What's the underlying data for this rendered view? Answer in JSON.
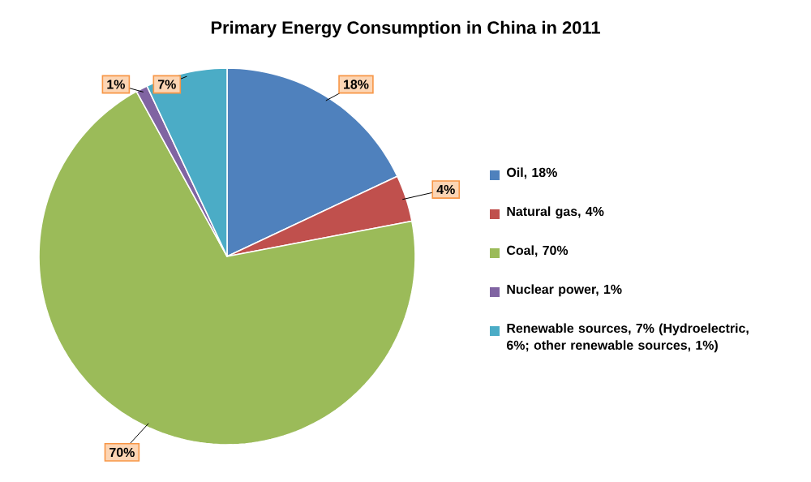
{
  "chart_data": {
    "type": "pie",
    "title": "Primary Energy Consumption in China in 2011",
    "categories": [
      "Oil, 18%",
      "Natural gas, 4%",
      "Coal, 70%",
      "Nuclear power, 1%",
      "Renewable sources, 7% (Hydroelectric, 6%; other renewable sources, 1%)"
    ],
    "values": [
      18,
      4,
      70,
      1,
      7
    ],
    "colors": [
      "#4f81bd",
      "#c0504d",
      "#9bbb59",
      "#8064a2",
      "#4bacc6"
    ],
    "value_labels": [
      "18%",
      "4%",
      "70%",
      "1%",
      "7%"
    ],
    "legend": "right"
  }
}
